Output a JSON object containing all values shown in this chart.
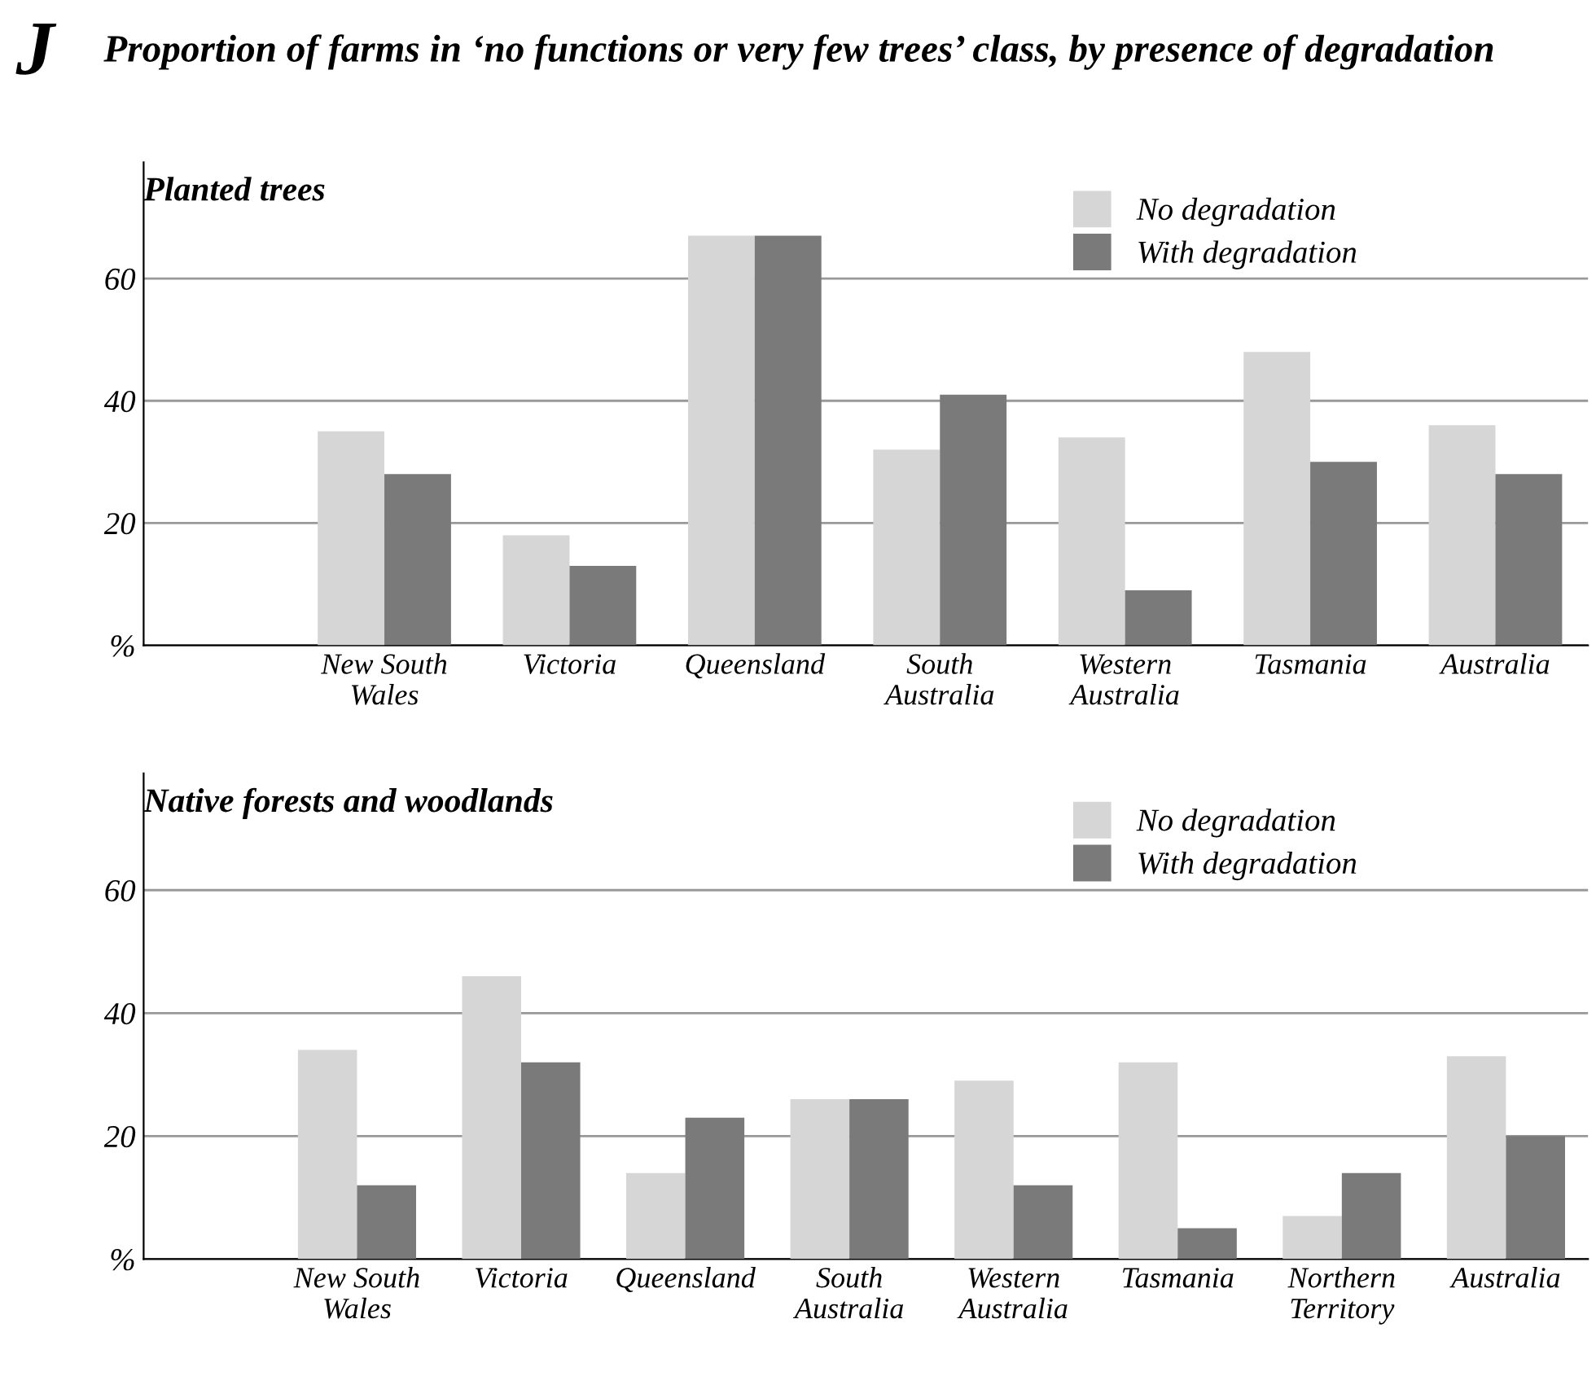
{
  "chart_data": [
    {
      "type": "bar",
      "title": "Planted trees",
      "annotations": [
        "J",
        "Proportion of farms in ‘no functions or very few trees’ class, by presence of degradation"
      ],
      "categories": [
        "New South\nWales",
        "Victoria",
        "Queensland",
        "South\nAustralia",
        "Western\nAustralia",
        "Tasmania",
        "Australia"
      ],
      "series": [
        {
          "name": "No degradation",
          "color": "#d6d6d6",
          "values": [
            35,
            18,
            67,
            32,
            34,
            48,
            36
          ]
        },
        {
          "name": "With degradation",
          "color": "#7a7a7a",
          "values": [
            28,
            13,
            67,
            41,
            9,
            30,
            28
          ]
        }
      ],
      "ylim": [
        0,
        79
      ],
      "yticks": [
        {
          "value": 0,
          "label": "%"
        },
        20,
        40,
        60
      ],
      "grid": "y",
      "legend": "top right"
    },
    {
      "type": "bar",
      "title": "Native forests and woodlands",
      "categories": [
        "New South\nWales",
        "Victoria",
        "Queensland",
        "South\nAustralia",
        "Western\nAustralia",
        "Tasmania",
        "Northern\nTerritory",
        "Australia"
      ],
      "series": [
        {
          "name": "No degradation",
          "color": "#d6d6d6",
          "values": [
            34,
            46,
            14,
            26,
            29,
            32,
            7,
            33
          ]
        },
        {
          "name": "With degradation",
          "color": "#7a7a7a",
          "values": [
            12,
            32,
            23,
            26,
            12,
            5,
            14,
            20
          ]
        }
      ],
      "ylim": [
        0,
        79
      ],
      "yticks": [
        {
          "value": 0,
          "label": "%"
        },
        20,
        40,
        60
      ],
      "grid": "y",
      "legend": "top right"
    }
  ]
}
